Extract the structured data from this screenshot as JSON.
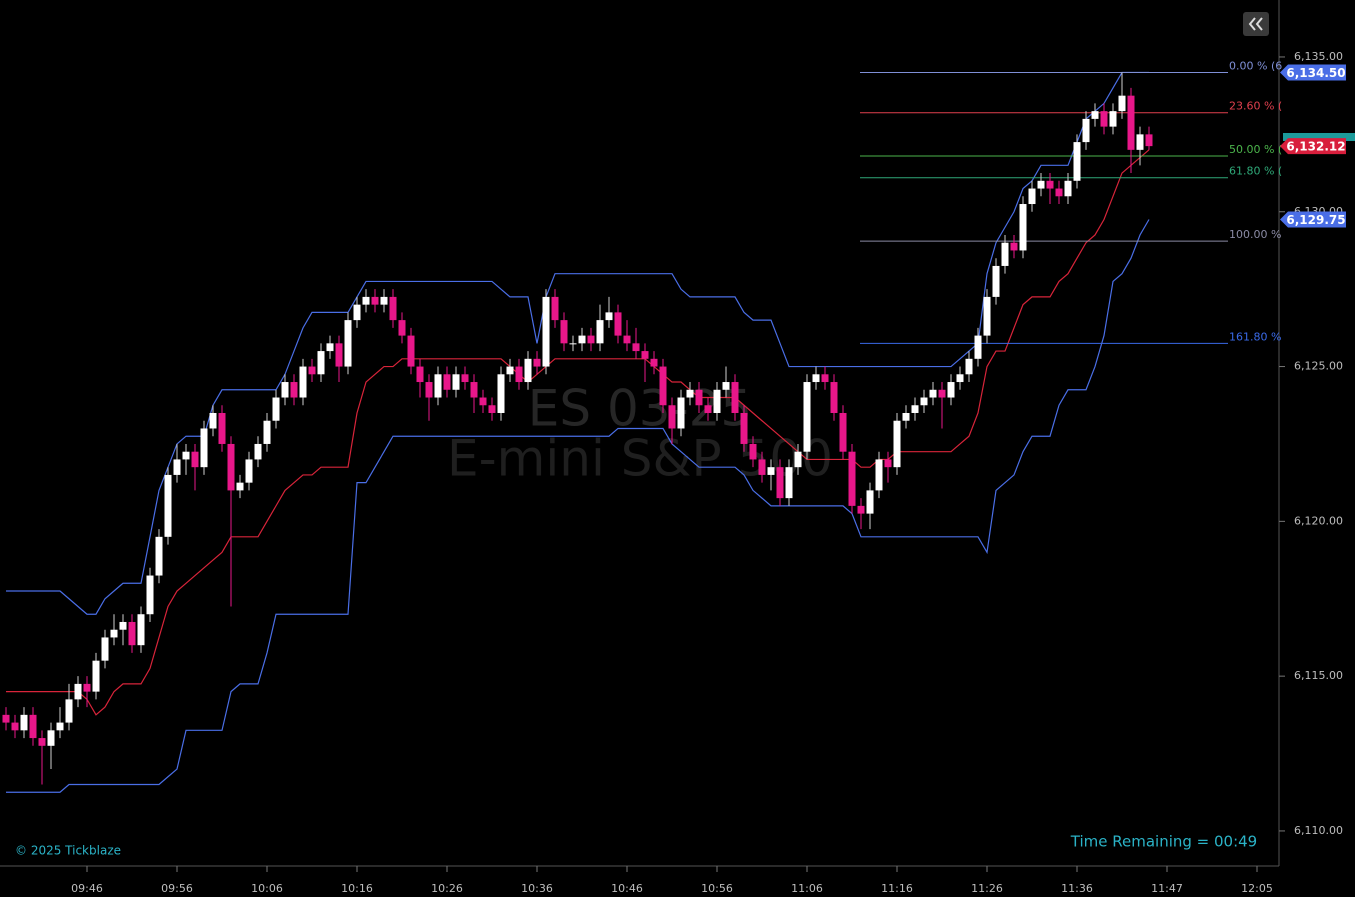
{
  "chart_data": {
    "type": "candlestick",
    "watermark": [
      "ES 03-25",
      "E-mini S&P 500"
    ],
    "copyright": "© 2025 Tickblaze",
    "time_remaining": "Time Remaining = 00:49",
    "categories": [
      null,
      null,
      null,
      null,
      null,
      null,
      null,
      null,
      null,
      "09:46",
      null,
      null,
      null,
      null,
      null,
      null,
      null,
      null,
      null,
      "09:56",
      null,
      null,
      null,
      null,
      null,
      null,
      null,
      null,
      null,
      "10:06",
      null,
      null,
      null,
      null,
      null,
      null,
      null,
      null,
      null,
      "10:16",
      null,
      null,
      null,
      null,
      null,
      null,
      null,
      null,
      null,
      "10:26",
      null,
      null,
      null,
      null,
      null,
      null,
      null,
      null,
      null,
      "10:36",
      null,
      null,
      null,
      null,
      null,
      null,
      null,
      null,
      null,
      "10:46",
      null,
      null,
      null,
      null,
      null,
      null,
      null,
      null,
      null,
      "10:56",
      null,
      null,
      null,
      null,
      null,
      null,
      null,
      null,
      null,
      "11:06",
      null,
      null,
      null,
      null,
      null,
      null,
      null,
      null,
      null,
      "11:16",
      null,
      null,
      null,
      null,
      null,
      null,
      null,
      null,
      null,
      "11:26",
      null,
      null,
      null,
      null,
      null,
      null,
      null,
      null,
      null,
      "11:36",
      null,
      null,
      null,
      null,
      null,
      null,
      null,
      null,
      null,
      "11:47",
      null,
      null,
      null,
      null,
      null,
      null,
      null,
      null,
      null,
      "12:05"
    ],
    "open": [
      6113.75,
      6113.5,
      6113.25,
      6113.75,
      6113.0,
      6112.75,
      6113.25,
      6113.5,
      6114.25,
      6114.75,
      6114.5,
      6115.5,
      6116.25,
      6116.5,
      6116.75,
      6116.0,
      6117.0,
      6118.25,
      6119.5,
      6121.5,
      6122.0,
      6122.25,
      6121.75,
      6123.0,
      6123.5,
      6122.5,
      6121.0,
      6121.25,
      6122.0,
      6122.5,
      6123.25,
      6124.0,
      6124.5,
      6124.0,
      6125.0,
      6124.75,
      6125.5,
      6125.75,
      6125.0,
      6126.5,
      6127.0,
      6127.25,
      6127.0,
      6127.25,
      6126.5,
      6126.0,
      6125.0,
      6124.5,
      6124.0,
      6124.75,
      6124.25,
      6124.75,
      6124.5,
      6124.0,
      6123.75,
      6123.5,
      6124.75,
      6125.0,
      6124.5,
      6125.25,
      6125.0,
      6127.25,
      6126.5,
      6125.75,
      6125.75,
      6126.0,
      6125.75,
      6126.5,
      6126.75,
      6126.0,
      6125.75,
      6125.5,
      6125.25,
      6125.0,
      6123.75,
      6123.0,
      6124.0,
      6124.25,
      6123.75,
      6123.5,
      6124.25,
      6124.5,
      6123.5,
      6122.5,
      6122.0,
      6121.5,
      6121.75,
      6120.75,
      6121.75,
      6122.25,
      6124.5,
      6124.75,
      6124.5,
      6123.5,
      6122.25,
      6120.5,
      6120.25,
      6121.0,
      6122.0,
      6121.75,
      6123.25,
      6123.5,
      6123.75,
      6124.0,
      6124.25,
      6124.0,
      6124.5,
      6124.75,
      6125.25,
      6126.0,
      6127.25,
      6128.25,
      6129.0,
      6128.75,
      6130.25,
      6130.75,
      6131.0,
      6130.75,
      6130.5,
      6131.0,
      6132.25,
      6133.0,
      6133.25,
      6132.75,
      6133.25,
      6133.75,
      6132.0,
      6132.5,
      null,
      null,
      null,
      null,
      null,
      null,
      null,
      null,
      null,
      null,
      null,
      null
    ],
    "high": [
      6114.0,
      6113.75,
      6114.0,
      6114.0,
      6113.25,
      6113.5,
      6114.0,
      6114.75,
      6115.0,
      6115.0,
      6115.75,
      6116.5,
      6117.0,
      6117.0,
      6117.0,
      6117.25,
      6118.5,
      6119.75,
      6121.75,
      6122.5,
      6122.5,
      6122.5,
      6123.25,
      6123.75,
      6123.75,
      6122.75,
      6121.5,
      6122.25,
      6122.75,
      6123.5,
      6124.25,
      6124.75,
      6124.75,
      6125.25,
      6125.25,
      6125.75,
      6126.0,
      6126.0,
      6126.75,
      6127.25,
      6127.5,
      6127.5,
      6127.5,
      6127.5,
      6126.75,
      6126.25,
      6125.25,
      6124.75,
      6125.0,
      6125.0,
      6125.0,
      6125.0,
      6124.75,
      6124.25,
      6124.0,
      6125.0,
      6125.25,
      6125.25,
      6125.5,
      6125.5,
      6127.5,
      6127.5,
      6126.75,
      6126.0,
      6126.25,
      6126.25,
      6127.0,
      6127.25,
      6127.0,
      6126.5,
      6126.25,
      6125.75,
      6125.5,
      6125.25,
      6124.0,
      6124.25,
      6124.5,
      6124.5,
      6124.0,
      6124.5,
      6125.0,
      6124.75,
      6123.75,
      6122.75,
      6122.25,
      6122.0,
      6122.0,
      6122.0,
      6122.5,
      6124.75,
      6125.0,
      6125.0,
      6124.75,
      6123.75,
      6122.5,
      6120.75,
      6121.25,
      6122.25,
      6122.25,
      6123.5,
      6123.75,
      6124.0,
      6124.25,
      6124.5,
      6124.5,
      6124.75,
      6125.0,
      6125.5,
      6126.25,
      6127.5,
      6128.5,
      6129.25,
      6129.25,
      6130.5,
      6131.0,
      6131.25,
      6131.25,
      6131.0,
      6131.25,
      6132.5,
      6133.25,
      6133.5,
      6133.5,
      6133.5,
      6134.5,
      6134.0,
      6132.75,
      6132.75,
      null,
      null,
      null,
      null,
      null,
      null,
      null,
      null,
      null,
      null,
      null,
      null
    ],
    "low": [
      6113.25,
      6113.0,
      6113.0,
      6112.75,
      6111.5,
      6112.0,
      6113.0,
      6113.25,
      6114.0,
      6114.0,
      6114.25,
      6115.25,
      6116.0,
      6116.0,
      6115.75,
      6115.75,
      6116.75,
      6118.0,
      6119.25,
      6121.25,
      6121.5,
      6121.0,
      6121.5,
      6122.75,
      6122.25,
      6117.25,
      6120.75,
      6121.0,
      6121.75,
      6122.25,
      6123.0,
      6123.75,
      6123.75,
      6123.75,
      6124.5,
      6124.5,
      6125.25,
      6124.5,
      6124.75,
      6126.25,
      6126.75,
      6126.75,
      6126.75,
      6126.25,
      6125.75,
      6124.75,
      6124.0,
      6123.25,
      6123.75,
      6124.0,
      6124.0,
      6124.25,
      6123.5,
      6123.5,
      6123.25,
      6123.25,
      6124.5,
      6124.25,
      6124.25,
      6124.75,
      6124.75,
      6126.25,
      6125.5,
      6125.5,
      6125.5,
      6125.5,
      6125.5,
      6126.25,
      6125.75,
      6125.5,
      6125.25,
      6124.5,
      6124.75,
      6123.5,
      6122.5,
      6122.75,
      6123.75,
      6123.5,
      6123.25,
      6123.25,
      6124.0,
      6123.25,
      6122.25,
      6121.75,
      6121.25,
      6121.0,
      6120.5,
      6120.5,
      6121.5,
      6122.0,
      6124.25,
      6124.25,
      6123.25,
      6122.0,
      6120.25,
      6119.75,
      6119.75,
      6120.75,
      6121.25,
      6121.5,
      6123.0,
      6123.25,
      6123.5,
      6123.75,
      6123.0,
      6123.75,
      6124.25,
      6124.5,
      6125.0,
      6125.75,
      6127.0,
      6128.0,
      6128.5,
      6128.5,
      6130.0,
      6130.5,
      6130.25,
      6130.25,
      6130.25,
      6130.75,
      6132.0,
      6132.75,
      6132.5,
      6132.5,
      6133.0,
      6131.25,
      6131.5,
      6132.0,
      null,
      null,
      null,
      null,
      null,
      null,
      null,
      null,
      null,
      null,
      null,
      null
    ],
    "close": [
      6113.5,
      6113.25,
      6113.75,
      6113.0,
      6112.75,
      6113.25,
      6113.5,
      6114.25,
      6114.75,
      6114.5,
      6115.5,
      6116.25,
      6116.5,
      6116.75,
      6116.0,
      6117.0,
      6118.25,
      6119.5,
      6121.5,
      6122.0,
      6122.25,
      6121.75,
      6123.0,
      6123.5,
      6122.5,
      6121.0,
      6121.25,
      6122.0,
      6122.5,
      6123.25,
      6124.0,
      6124.5,
      6124.0,
      6125.0,
      6124.75,
      6125.5,
      6125.75,
      6125.0,
      6126.5,
      6127.0,
      6127.25,
      6127.0,
      6127.25,
      6126.5,
      6126.0,
      6125.0,
      6124.5,
      6124.0,
      6124.75,
      6124.25,
      6124.75,
      6124.5,
      6124.0,
      6123.75,
      6123.5,
      6124.75,
      6125.0,
      6124.5,
      6125.25,
      6125.0,
      6127.25,
      6126.5,
      6125.75,
      6125.75,
      6126.0,
      6125.75,
      6126.5,
      6126.75,
      6126.0,
      6125.75,
      6125.5,
      6125.25,
      6125.0,
      6123.75,
      6123.0,
      6124.0,
      6124.25,
      6123.75,
      6123.5,
      6124.25,
      6124.5,
      6123.5,
      6122.5,
      6122.0,
      6121.5,
      6121.75,
      6120.75,
      6121.75,
      6122.25,
      6124.5,
      6124.75,
      6124.5,
      6123.5,
      6122.25,
      6120.5,
      6120.25,
      6121.0,
      6122.0,
      6121.75,
      6123.25,
      6123.5,
      6123.75,
      6124.0,
      6124.25,
      6124.0,
      6124.5,
      6124.75,
      6125.25,
      6126.0,
      6127.25,
      6128.25,
      6129.0,
      6128.75,
      6130.25,
      6130.75,
      6131.0,
      6130.75,
      6130.5,
      6131.0,
      6132.25,
      6133.0,
      6133.25,
      6132.75,
      6133.25,
      6133.75,
      6132.0,
      6132.5,
      6132.12,
      null,
      null,
      null,
      null,
      null,
      null,
      null,
      null,
      null,
      null,
      null,
      null
    ],
    "up_color": "#ffffff",
    "down_color": "#e8178a",
    "lines": [
      {
        "color": "#4a6ee6",
        "values": [
          6117.75,
          6117.75,
          6117.75,
          6117.75,
          6117.75,
          6117.75,
          6117.75,
          6117.5,
          6117.25,
          6117.0,
          6117.0,
          6117.5,
          6117.75,
          6118.0,
          6118.0,
          6118.0,
          6119.5,
          6121.0,
          6121.75,
          6122.5,
          6122.75,
          6122.75,
          6122.75,
          6123.75,
          6124.25,
          6124.25,
          6124.25,
          6124.25,
          6124.25,
          6124.25,
          6124.25,
          6124.75,
          6125.5,
          6126.25,
          6126.75,
          6126.75,
          6126.75,
          6126.75,
          6126.75,
          6127.25,
          6127.75,
          6127.75,
          6127.75,
          6127.75,
          6127.75,
          6127.75,
          6127.75,
          6127.75,
          6127.75,
          6127.75,
          6127.75,
          6127.75,
          6127.75,
          6127.75,
          6127.75,
          6127.5,
          6127.25,
          6127.25,
          6127.25,
          6125.75,
          6127.25,
          6128.0,
          6128.0,
          6128.0,
          6128.0,
          6128.0,
          6128.0,
          6128.0,
          6128.0,
          6128.0,
          6128.0,
          6128.0,
          6128.0,
          6128.0,
          6128.0,
          6127.5,
          6127.25,
          6127.25,
          6127.25,
          6127.25,
          6127.25,
          6127.25,
          6126.75,
          6126.5,
          6126.5,
          6126.5,
          6125.75,
          6125.0,
          6125.0,
          6125.0,
          6125.0,
          6125.0,
          6125.0,
          6125.0,
          6125.0,
          6125.0,
          6125.0,
          6125.0,
          6125.0,
          6125.0,
          6125.0,
          6125.0,
          6125.0,
          6125.0,
          6125.0,
          6125.0,
          6125.25,
          6125.5,
          6125.75,
          6128.0,
          6129.0,
          6129.5,
          6130.0,
          6130.75,
          6131.0,
          6131.5,
          6131.5,
          6131.5,
          6131.5,
          6132.25,
          6133.0,
          6133.25,
          6133.5,
          6134.0,
          6134.5,
          6134.5,
          6134.5,
          6134.5,
          null,
          null,
          null,
          null,
          null,
          null,
          null,
          null,
          null,
          null,
          null,
          null
        ]
      },
      {
        "color": "#d8243a",
        "values": [
          6114.5,
          6114.5,
          6114.5,
          6114.5,
          6114.5,
          6114.5,
          6114.5,
          6114.5,
          6114.5,
          6114.25,
          6113.75,
          6114.0,
          6114.5,
          6114.75,
          6114.75,
          6114.75,
          6115.25,
          6116.25,
          6117.25,
          6117.75,
          6118.0,
          6118.25,
          6118.5,
          6118.75,
          6119.0,
          6119.5,
          6119.5,
          6119.5,
          6119.5,
          6120.0,
          6120.5,
          6121.0,
          6121.25,
          6121.5,
          6121.5,
          6121.75,
          6121.75,
          6121.75,
          6121.75,
          6123.5,
          6124.5,
          6124.75,
          6125.0,
          6125.0,
          6125.25,
          6125.25,
          6125.25,
          6125.25,
          6125.25,
          6125.25,
          6125.25,
          6125.25,
          6125.25,
          6125.25,
          6125.25,
          6125.25,
          6125.0,
          6124.75,
          6124.5,
          6124.75,
          6125.0,
          6125.25,
          6125.25,
          6125.25,
          6125.25,
          6125.25,
          6125.25,
          6125.25,
          6125.25,
          6125.25,
          6125.25,
          6125.25,
          6125.0,
          6124.75,
          6124.5,
          6124.5,
          6124.25,
          6124.0,
          6124.0,
          6124.0,
          6124.0,
          6124.0,
          6123.75,
          6123.5,
          6123.25,
          6123.0,
          6122.75,
          6122.5,
          6122.25,
          6122.0,
          6122.0,
          6122.0,
          6122.0,
          6122.0,
          6122.0,
          6121.75,
          6121.75,
          6122.0,
          6122.0,
          6122.25,
          6122.25,
          6122.25,
          6122.25,
          6122.25,
          6122.25,
          6122.25,
          6122.5,
          6122.75,
          6123.5,
          6125.0,
          6125.5,
          6125.5,
          6126.25,
          6127.0,
          6127.25,
          6127.25,
          6127.25,
          6127.75,
          6128.0,
          6128.5,
          6129.0,
          6129.25,
          6129.75,
          6130.5,
          6131.25,
          6131.5,
          6131.75,
          6132.0,
          null,
          null,
          null,
          null,
          null,
          null,
          null,
          null,
          null,
          null,
          null,
          null
        ]
      },
      {
        "color": "#4a6ee6",
        "values": [
          6111.25,
          6111.25,
          6111.25,
          6111.25,
          6111.25,
          6111.25,
          6111.25,
          6111.5,
          6111.5,
          6111.5,
          6111.5,
          6111.5,
          6111.5,
          6111.5,
          6111.5,
          6111.5,
          6111.5,
          6111.5,
          6111.75,
          6112.0,
          6113.25,
          6113.25,
          6113.25,
          6113.25,
          6113.25,
          6114.5,
          6114.75,
          6114.75,
          6114.75,
          6115.75,
          6117.0,
          6117.0,
          6117.0,
          6117.0,
          6117.0,
          6117.0,
          6117.0,
          6117.0,
          6117.0,
          6121.25,
          6121.25,
          6121.75,
          6122.25,
          6122.75,
          6122.75,
          6122.75,
          6122.75,
          6122.75,
          6122.75,
          6122.75,
          6122.75,
          6122.75,
          6122.75,
          6122.75,
          6122.75,
          6122.75,
          6122.75,
          6122.75,
          6122.75,
          6122.75,
          6122.75,
          6122.75,
          6122.75,
          6122.75,
          6122.75,
          6122.75,
          6122.75,
          6122.75,
          6123.0,
          6123.0,
          6123.0,
          6123.0,
          6123.0,
          6123.0,
          6122.5,
          6122.25,
          6122.0,
          6121.75,
          6121.75,
          6121.75,
          6121.75,
          6121.75,
          6121.5,
          6121.0,
          6120.75,
          6120.5,
          6120.5,
          6120.5,
          6120.5,
          6120.5,
          6120.5,
          6120.5,
          6120.5,
          6120.5,
          6120.25,
          6119.5,
          6119.5,
          6119.5,
          6119.5,
          6119.5,
          6119.5,
          6119.5,
          6119.5,
          6119.5,
          6119.5,
          6119.5,
          6119.5,
          6119.5,
          6119.5,
          6119.0,
          6121.0,
          6121.25,
          6121.5,
          6122.25,
          6122.75,
          6122.75,
          6122.75,
          6123.75,
          6124.25,
          6124.25,
          6124.25,
          6125.0,
          6126.0,
          6127.75,
          6128.0,
          6128.5,
          6129.25,
          6129.75,
          null,
          null,
          null,
          null,
          null,
          null,
          null,
          null,
          null,
          null,
          null,
          null
        ]
      }
    ],
    "ylim": [
      6108.9,
      6136.84
    ],
    "yticks": [
      {
        "value": 6110,
        "label": "6,110.00"
      },
      {
        "value": 6115,
        "label": "6,115.00"
      },
      {
        "value": 6120,
        "label": "6,120.00"
      },
      {
        "value": 6125,
        "label": "6,125.00"
      },
      {
        "value": 6130,
        "label": "6,130.00"
      },
      {
        "value": 6135,
        "label": "6,135.00"
      }
    ],
    "fib_levels": [
      {
        "label": "0.00 % (6",
        "value": 6134.5,
        "color": "#7f8fd6"
      },
      {
        "label": "23.60 % (",
        "value": 6133.2,
        "color": "#e0404e"
      },
      {
        "label": "50.00 % (",
        "value": 6131.8,
        "color": "#4cb54c"
      },
      {
        "label": "61.80 % (",
        "value": 6131.1,
        "color": "#2fa878"
      },
      {
        "label": "100.00 %",
        "value": 6129.05,
        "color": "#8a8aa4"
      },
      {
        "label": "161.80 %",
        "value": 6125.75,
        "color": "#3a6ae8"
      }
    ],
    "price_markers": [
      {
        "label": "6,134.50",
        "value": 6134.5,
        "color": "#4a6ee6"
      },
      {
        "label": "6,132.12",
        "value": 6132.12,
        "color": "#d81e3c"
      },
      {
        "label": "6,129.75",
        "value": 6129.75,
        "color": "#4a6ee6"
      }
    ]
  }
}
